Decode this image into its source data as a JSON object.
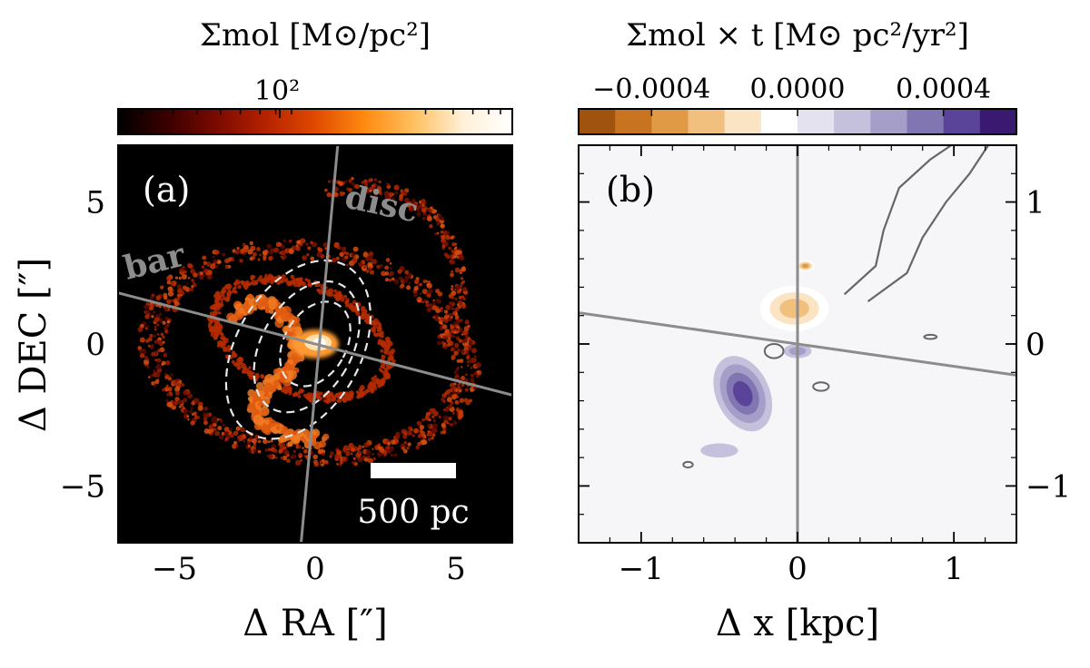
{
  "chart_data": [
    {
      "type": "heatmap",
      "panel_label": "(a)",
      "title": "Σmol [M⊙/pc²]",
      "colorbar": {
        "label": "Σmol [M⊙/pc²]",
        "scale": "log",
        "tick_labels": [
          "10²"
        ],
        "colors": [
          "#000000",
          "#3a0000",
          "#7a0a00",
          "#b52200",
          "#e04a00",
          "#ff8a10",
          "#ffc060",
          "#fff0d8",
          "#ffffff"
        ]
      },
      "xlabel": "Δ RA [″]",
      "ylabel": "Δ DEC [″]",
      "xlim": [
        -7,
        7
      ],
      "ylim": [
        -7,
        7
      ],
      "xticks": [
        -5,
        0,
        5
      ],
      "yticks": [
        -5,
        0,
        5
      ],
      "xtick_labels": [
        "−5",
        "0",
        "5"
      ],
      "ytick_labels": [
        "−5",
        "0",
        "5"
      ],
      "overlay_lines": [
        {
          "name": "disc",
          "points": [
            [
              -0.5,
              -7
            ],
            [
              0.8,
              7
            ]
          ]
        },
        {
          "name": "bar",
          "points": [
            [
              -7,
              1.8
            ],
            [
              7,
              -1.8
            ]
          ]
        }
      ],
      "ellipses": [
        {
          "center": [
            0.0,
            0.0
          ],
          "semi_major": 1.6,
          "semi_minor": 1.1,
          "angle_deg": 60
        },
        {
          "center": [
            -0.3,
            -0.1
          ],
          "semi_major": 2.5,
          "semi_minor": 1.6,
          "angle_deg": 60
        },
        {
          "center": [
            -0.6,
            -0.2
          ],
          "semi_major": 3.4,
          "semi_minor": 2.2,
          "angle_deg": 60
        }
      ],
      "scale_bar": {
        "label": "500 pc",
        "length_arcsec": 3.0
      },
      "annotations": [
        "disc",
        "bar"
      ],
      "background_color": "#000000"
    },
    {
      "type": "heatmap",
      "panel_label": "(b)",
      "title": "Σmol × t [M⊙ pc²/yr²]",
      "colorbar": {
        "label": "Σmol × t [M⊙ pc²/yr²]",
        "range": [
          -0.0006,
          0.0006
        ],
        "ticks": [
          -0.0004,
          0.0,
          0.0004
        ],
        "tick_labels": [
          "−0.0004",
          "0.0000",
          "0.0004"
        ],
        "levels": [
          "#a0520f",
          "#c7731f",
          "#e09a45",
          "#f2c07e",
          "#fbe4c3",
          "#ffffff",
          "#e4e2ee",
          "#c5c1dd",
          "#a49ec8",
          "#8176b1",
          "#5a4499",
          "#3a1a70"
        ]
      },
      "xlabel": "Δ x [kpc]",
      "ylabel": "",
      "xlim": [
        -1.4,
        1.4
      ],
      "ylim": [
        -1.4,
        1.4
      ],
      "xticks": [
        -1,
        0,
        1
      ],
      "yticks": [
        -1,
        0,
        1
      ],
      "xtick_labels": [
        "−1",
        "0",
        "1"
      ],
      "ytick_labels": [
        "−1",
        "0",
        "1"
      ],
      "ytick_side": "right",
      "overlay_lines": [
        {
          "name": "disc",
          "points": [
            [
              0.0,
              -1.4
            ],
            [
              0.0,
              1.4
            ]
          ]
        },
        {
          "name": "bar",
          "points": [
            [
              -1.4,
              0.22
            ],
            [
              1.4,
              -0.22
            ]
          ]
        }
      ],
      "blobs": [
        {
          "sign": "negative",
          "center": [
            -0.02,
            0.25
          ],
          "rx": 0.22,
          "ry": 0.16,
          "level": 3
        },
        {
          "sign": "negative",
          "center": [
            0.05,
            0.55
          ],
          "rx": 0.06,
          "ry": 0.04,
          "level": 4
        },
        {
          "sign": "positive",
          "center": [
            -0.35,
            -0.35
          ],
          "rx": 0.17,
          "ry": 0.28,
          "level": 4
        },
        {
          "sign": "positive",
          "center": [
            0.0,
            -0.05
          ],
          "rx": 0.09,
          "ry": 0.05,
          "level": 2
        },
        {
          "sign": "positive",
          "center": [
            -0.5,
            -0.75
          ],
          "rx": 0.12,
          "ry": 0.05,
          "level": 1
        }
      ],
      "background_color": "#f6f6f8"
    }
  ],
  "annotations": {
    "disc_label": "disc",
    "bar_label": "bar",
    "scale_label": "500 pc"
  }
}
